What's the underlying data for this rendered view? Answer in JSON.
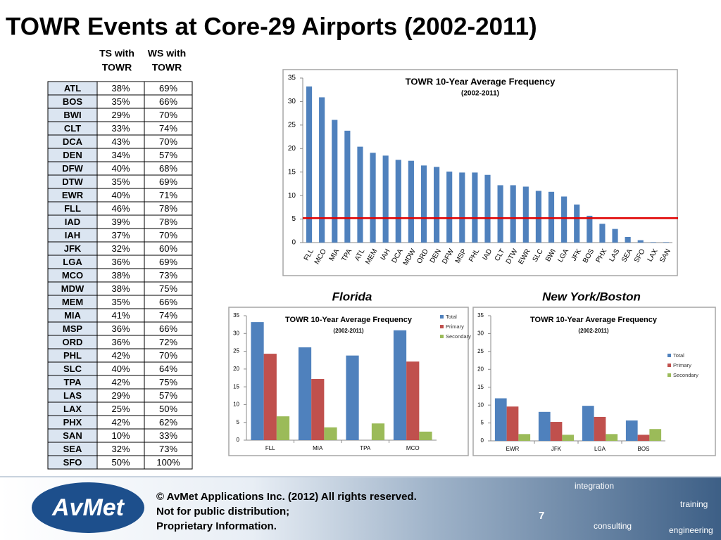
{
  "title": "TOWR Events at Core-29 Airports (2002-2011)",
  "table": {
    "columns": [
      [
        "TS with",
        "TOWR"
      ],
      [
        "WS with",
        "TOWR"
      ]
    ],
    "rows": [
      [
        "ATL",
        "38%",
        "69%"
      ],
      [
        "BOS",
        "35%",
        "66%"
      ],
      [
        "BWI",
        "29%",
        "70%"
      ],
      [
        "CLT",
        "33%",
        "74%"
      ],
      [
        "DCA",
        "43%",
        "70%"
      ],
      [
        "DEN",
        "34%",
        "57%"
      ],
      [
        "DFW",
        "40%",
        "68%"
      ],
      [
        "DTW",
        "35%",
        "69%"
      ],
      [
        "EWR",
        "40%",
        "71%"
      ],
      [
        "FLL",
        "46%",
        "78%"
      ],
      [
        "IAD",
        "39%",
        "78%"
      ],
      [
        "IAH",
        "37%",
        "70%"
      ],
      [
        "JFK",
        "32%",
        "60%"
      ],
      [
        "LGA",
        "36%",
        "69%"
      ],
      [
        "MCO",
        "38%",
        "73%"
      ],
      [
        "MDW",
        "38%",
        "75%"
      ],
      [
        "MEM",
        "35%",
        "66%"
      ],
      [
        "MIA",
        "41%",
        "74%"
      ],
      [
        "MSP",
        "36%",
        "66%"
      ],
      [
        "ORD",
        "36%",
        "72%"
      ],
      [
        "PHL",
        "42%",
        "70%"
      ],
      [
        "SLC",
        "40%",
        "64%"
      ],
      [
        "TPA",
        "42%",
        "75%"
      ],
      [
        "LAS",
        "29%",
        "57%"
      ],
      [
        "LAX",
        "25%",
        "50%"
      ],
      [
        "PHX",
        "42%",
        "62%"
      ],
      [
        "SAN",
        "10%",
        "33%"
      ],
      [
        "SEA",
        "32%",
        "73%"
      ],
      [
        "SFO",
        "50%",
        "100%"
      ]
    ]
  },
  "chart_data": [
    {
      "type": "bar",
      "title": "TOWR 10-Year Average Frequency",
      "subtitle": "(2002-2011)",
      "categories": [
        "FLL",
        "MCO",
        "MIA",
        "TPA",
        "ATL",
        "MEM",
        "IAH",
        "DCA",
        "MDW",
        "ORD",
        "DEN",
        "DFW",
        "MSP",
        "PHL",
        "IAD",
        "CLT",
        "DTW",
        "EWR",
        "SLC",
        "BWI",
        "LGA",
        "JFK",
        "BOS",
        "PHX",
        "LAS",
        "SEA",
        "SFO",
        "LAX",
        "SAN"
      ],
      "values": [
        33.2,
        30.9,
        26.1,
        23.8,
        20.4,
        19.1,
        18.5,
        17.6,
        17.4,
        16.4,
        16.1,
        15.1,
        14.9,
        14.9,
        14.4,
        12.2,
        12.2,
        11.9,
        11.0,
        10.8,
        9.8,
        8.1,
        5.7,
        4.0,
        2.9,
        1.2,
        0.5,
        0.1,
        0.1
      ],
      "color": "#4f81bd",
      "ylim": [
        0,
        35
      ],
      "yticks": [
        0,
        5,
        10,
        15,
        20,
        25,
        30,
        35
      ],
      "reference_line": 5.2,
      "reference_color": "#e00000"
    },
    {
      "type": "bar",
      "caption": "Florida",
      "title": "TOWR 10-Year Average Frequency",
      "subtitle": "(2002-2011)",
      "categories": [
        "FLL",
        "MIA",
        "TPA",
        "MCO"
      ],
      "series": [
        {
          "name": "Total",
          "color": "#4f81bd",
          "values": [
            33.2,
            26.1,
            23.8,
            30.9
          ]
        },
        {
          "name": "Primary",
          "color": "#c0504d",
          "values": [
            24.3,
            17.2,
            null,
            22.1
          ]
        },
        {
          "name": "Secondary",
          "color": "#9bbb59",
          "values": [
            6.7,
            3.6,
            4.7,
            2.4
          ]
        }
      ],
      "ylim": [
        0,
        35
      ],
      "yticks": [
        0,
        5,
        10,
        15,
        20,
        25,
        30,
        35
      ],
      "legend": "top-right"
    },
    {
      "type": "bar",
      "caption": "New York/Boston",
      "title": "TOWR 10-Year Average Frequency",
      "subtitle": "(2002-2011)",
      "categories": [
        "EWR",
        "JFK",
        "LGA",
        "BOS"
      ],
      "series": [
        {
          "name": "Total",
          "color": "#4f81bd",
          "values": [
            11.9,
            8.1,
            9.8,
            5.7
          ]
        },
        {
          "name": "Primary",
          "color": "#c0504d",
          "values": [
            9.6,
            5.3,
            6.7,
            1.7
          ]
        },
        {
          "name": "Secondary",
          "color": "#9bbb59",
          "values": [
            1.9,
            1.7,
            1.9,
            3.3
          ]
        }
      ],
      "ylim": [
        0,
        35
      ],
      "yticks": [
        0,
        5,
        10,
        15,
        20,
        25,
        30,
        35
      ],
      "legend": "right"
    }
  ],
  "footer": {
    "logo": "AvMet",
    "lines": [
      "© AvMet Applications Inc. (2012) All rights reserved.",
      "Not for public distribution;",
      "Proprietary Information."
    ],
    "page": "7",
    "tags": [
      "integration",
      "training",
      "consulting",
      "engineering"
    ]
  }
}
